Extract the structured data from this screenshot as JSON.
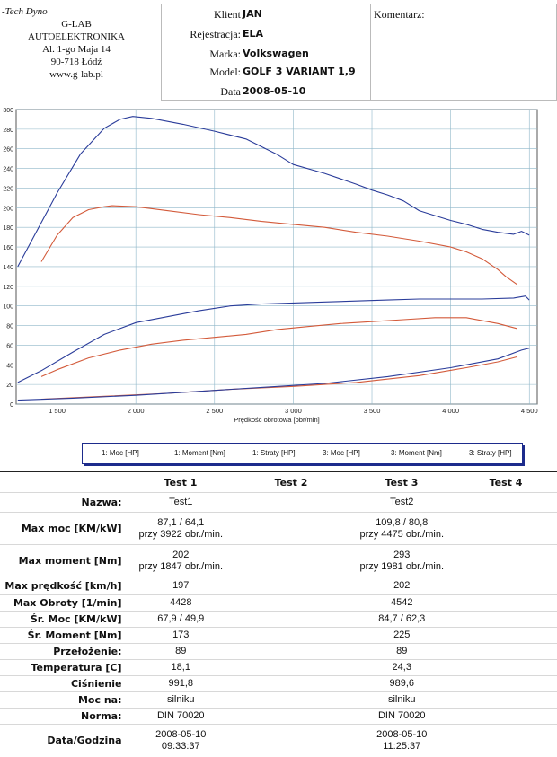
{
  "company": {
    "brand": "-Tech Dyno",
    "lines": [
      "G-LAB",
      "AUTOELEKTRONIKA",
      "Al. 1-go Maja 14",
      "90-718 Łódź",
      "www.g-lab.pl"
    ]
  },
  "vehicle": {
    "rows": [
      {
        "label": "Klient",
        "value": "JAN"
      },
      {
        "label": "Rejestracja:",
        "value": "ELA"
      },
      {
        "label": "Marka:",
        "value": "Volkswagen"
      },
      {
        "label": "Model:",
        "value": "GOLF 3 VARIANT 1,9"
      },
      {
        "label": "Data",
        "value": "2008-05-10"
      }
    ]
  },
  "comment": {
    "label": "Komentarz:"
  },
  "chart_data": {
    "type": "line",
    "xlabel": "Prędkość obrotowa [obr/min]",
    "ylabel": "",
    "xlim": [
      1240,
      4550
    ],
    "ylim": [
      0,
      300
    ],
    "xticks": [
      1500,
      2000,
      2500,
      3000,
      3500,
      4000,
      4500
    ],
    "xtick_labels": [
      "1 500",
      "2 000",
      "2 500",
      "3 000",
      "3 500",
      "4 000",
      "4 500"
    ],
    "yticks": [
      0,
      20,
      40,
      60,
      80,
      100,
      120,
      140,
      160,
      180,
      200,
      220,
      240,
      260,
      280,
      300
    ],
    "grid": true,
    "legend_position": "bottom",
    "series": [
      {
        "name": "1: Moc [HP]",
        "color": "#d35a3a",
        "x": [
          1400,
          1500,
          1700,
          1900,
          2100,
          2300,
          2500,
          2700,
          2900,
          3100,
          3300,
          3500,
          3700,
          3900,
          4100,
          4300,
          4420
        ],
        "y": [
          28,
          35,
          47,
          55,
          61,
          65,
          68,
          71,
          76,
          79,
          82,
          84,
          86,
          88,
          88,
          82,
          77
        ]
      },
      {
        "name": "1: Moment [Nm]",
        "color": "#d35a3a",
        "x": [
          1400,
          1500,
          1600,
          1700,
          1800,
          1850,
          2000,
          2200,
          2400,
          2600,
          2800,
          3000,
          3200,
          3400,
          3600,
          3800,
          4000,
          4100,
          4200,
          4300,
          4350,
          4420
        ],
        "y": [
          145,
          172,
          190,
          198,
          201,
          202,
          201,
          197,
          193,
          190,
          186,
          183,
          180,
          175,
          171,
          166,
          160,
          155,
          148,
          137,
          130,
          122
        ]
      },
      {
        "name": "1: Straty [HP]",
        "color": "#d35a3a",
        "x": [
          1400,
          1800,
          2200,
          2600,
          3000,
          3400,
          3800,
          4100,
          4300,
          4420
        ],
        "y": [
          5,
          8,
          11,
          15,
          18,
          22,
          29,
          37,
          43,
          48
        ]
      },
      {
        "name": "3: Moc [HP]",
        "color": "#2a3c9a",
        "x": [
          1250,
          1400,
          1600,
          1800,
          2000,
          2200,
          2400,
          2600,
          2800,
          3000,
          3200,
          3400,
          3600,
          3800,
          4000,
          4200,
          4400,
          4475,
          4500
        ],
        "y": [
          22,
          34,
          53,
          71,
          83,
          89,
          95,
          100,
          102,
          103,
          104,
          105,
          106,
          107,
          107,
          107,
          108,
          110,
          106
        ]
      },
      {
        "name": "3: Moment [Nm]",
        "color": "#2a3c9a",
        "x": [
          1250,
          1350,
          1500,
          1650,
          1800,
          1900,
          1981,
          2100,
          2300,
          2500,
          2700,
          2900,
          3000,
          3200,
          3400,
          3500,
          3600,
          3700,
          3800,
          3900,
          4000,
          4100,
          4200,
          4300,
          4400,
          4450,
          4500
        ],
        "y": [
          140,
          170,
          215,
          255,
          281,
          290,
          293,
          291,
          285,
          278,
          270,
          254,
          244,
          235,
          224,
          218,
          213,
          207,
          197,
          192,
          187,
          183,
          178,
          175,
          173,
          176,
          172
        ]
      },
      {
        "name": "3: Straty [HP]",
        "color": "#2a3c9a",
        "x": [
          1250,
          1600,
          2000,
          2400,
          2800,
          3200,
          3600,
          4000,
          4300,
          4450,
          4500
        ],
        "y": [
          4,
          6,
          9,
          13,
          17,
          21,
          28,
          37,
          46,
          55,
          57
        ]
      }
    ]
  },
  "legend": [
    {
      "label": "1: Moc [HP]",
      "color": "#d35a3a"
    },
    {
      "label": "1: Moment [Nm]",
      "color": "#d35a3a"
    },
    {
      "label": "1: Straty [HP]",
      "color": "#d35a3a"
    },
    {
      "label": "3: Moc [HP]",
      "color": "#2a3c9a"
    },
    {
      "label": "3: Moment [Nm]",
      "color": "#2a3c9a"
    },
    {
      "label": "3: Straty [HP]",
      "color": "#2a3c9a"
    }
  ],
  "results": {
    "headers": [
      "Test 1",
      "Test 2",
      "Test 3",
      "Test 4"
    ],
    "rows": [
      {
        "label": "Nazwa:",
        "t1": [
          "Test1"
        ],
        "t3": [
          "Test2"
        ]
      },
      {
        "label": "Max moc [KM/kW]",
        "t1": [
          "87,1 / 64,1",
          "przy 3922 obr./min."
        ],
        "t3": [
          "109,8 / 80,8",
          "przy 4475 obr./min."
        ]
      },
      {
        "label": "Max moment [Nm]",
        "t1": [
          "202",
          "przy 1847 obr./min."
        ],
        "t3": [
          "293",
          "przy 1981 obr./min."
        ]
      },
      {
        "label": "Max prędkość [km/h]",
        "t1": [
          "197"
        ],
        "t3": [
          "202"
        ]
      },
      {
        "label": "Max Obroty [1/min]",
        "t1": [
          "4428"
        ],
        "t3": [
          "4542"
        ]
      },
      {
        "label": "Śr. Moc [KM/kW]",
        "t1": [
          "67,9 / 49,9"
        ],
        "t3": [
          "84,7 / 62,3"
        ]
      },
      {
        "label": "Śr. Moment [Nm]",
        "t1": [
          "173"
        ],
        "t3": [
          "225"
        ]
      },
      {
        "label": "Przełożenie:",
        "t1": [
          "89"
        ],
        "t3": [
          "89"
        ]
      },
      {
        "label": "Temperatura [C]",
        "t1": [
          "18,1"
        ],
        "t3": [
          "24,3"
        ]
      },
      {
        "label": "Ciśnienie",
        "t1": [
          "991,8"
        ],
        "t3": [
          "989,6"
        ]
      },
      {
        "label": "Moc na:",
        "t1": [
          "silniku"
        ],
        "t3": [
          "silniku"
        ]
      },
      {
        "label": "Norma:",
        "t1": [
          "DIN 70020"
        ],
        "t3": [
          "DIN 70020"
        ]
      },
      {
        "label": "Data/Godzina",
        "t1": [
          "2008-05-10",
          "09:33:37"
        ],
        "t3": [
          "2008-05-10",
          "11:25:37"
        ]
      }
    ]
  }
}
